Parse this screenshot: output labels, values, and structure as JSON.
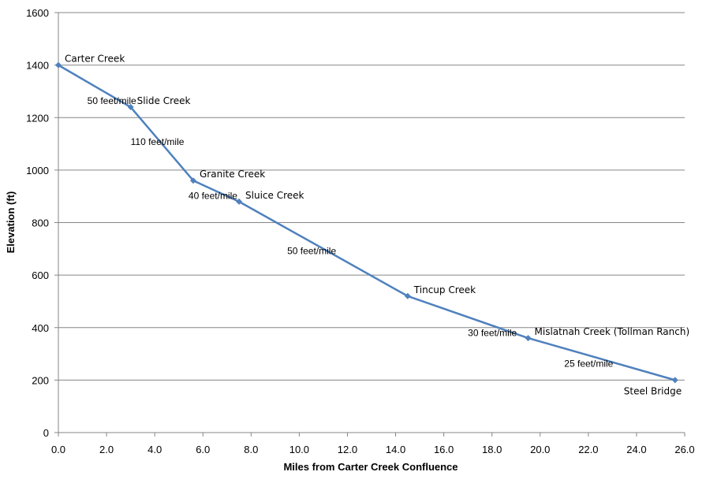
{
  "chart_data": {
    "type": "line",
    "title": "",
    "xlabel": "Miles from Carter Creek Confluence",
    "ylabel": "Elevation (ft)",
    "xlim": [
      0,
      26
    ],
    "ylim": [
      0,
      1600
    ],
    "x_ticks": [
      "0.0",
      "2.0",
      "4.0",
      "6.0",
      "8.0",
      "10.0",
      "12.0",
      "14.0",
      "16.0",
      "18.0",
      "20.0",
      "22.0",
      "24.0",
      "26.0"
    ],
    "y_ticks": [
      "0",
      "200",
      "400",
      "600",
      "800",
      "1000",
      "1200",
      "1400",
      "1600"
    ],
    "grid": "horizontal",
    "legend": "none",
    "line_color": "#4f81bd",
    "series": [
      {
        "x": [
          0.0,
          3.0,
          5.6,
          7.5,
          14.5,
          19.5,
          25.6
        ],
        "y": [
          1400,
          1240,
          960,
          880,
          520,
          360,
          200
        ],
        "labels": [
          "Carter Creek",
          "Slide Creek",
          "Granite Creek",
          "Sluice Creek",
          "Tincup Creek",
          "Mislatnah Creek (Tollman Ranch)",
          "Steel Bridge"
        ]
      }
    ],
    "annotations": [
      {
        "text": "50 feet/mile",
        "x": 1.2,
        "y": 1252
      },
      {
        "text": "110 feet/mile",
        "x": 3.0,
        "y": 1096
      },
      {
        "text": "40 feet/mile",
        "x": 5.4,
        "y": 890
      },
      {
        "text": "50 feet/mile",
        "x": 9.5,
        "y": 680
      },
      {
        "text": "30 feet/mile",
        "x": 17.0,
        "y": 367
      },
      {
        "text": "25 feet/mile",
        "x": 21.0,
        "y": 250
      }
    ]
  }
}
